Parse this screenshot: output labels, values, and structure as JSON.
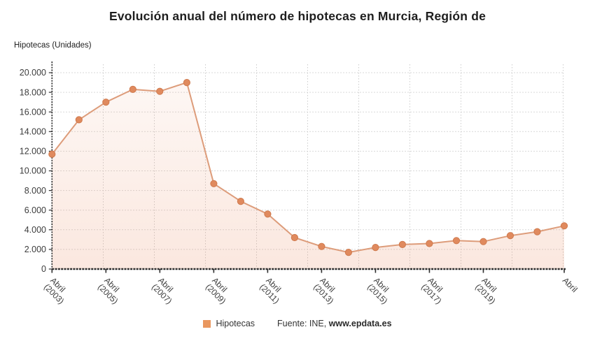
{
  "title": "Evolución anual del número de hipotecas en Murcia, Región de",
  "axis_title": "Hipotecas (Unidades)",
  "legend": {
    "label": "Hipotecas",
    "source_prefix": "Fuente: INE, ",
    "source_link": "www.epdata.es",
    "marker_color": "#e9975f"
  },
  "chart_data": {
    "type": "line",
    "title": "Evolución anual del número de hipotecas en Murcia, Región de",
    "ylabel": "Hipotecas (Unidades)",
    "x_month": "Abril",
    "x_years": [
      2003,
      2004,
      2005,
      2006,
      2007,
      2008,
      2009,
      2010,
      2011,
      2012,
      2013,
      2014,
      2015,
      2016,
      2017,
      2018,
      2019,
      2020,
      2021,
      2022
    ],
    "series": [
      {
        "name": "Hipotecas",
        "values": [
          11700,
          15200,
          17000,
          18300,
          18100,
          19000,
          8700,
          6900,
          5600,
          3200,
          2300,
          1700,
          2200,
          2500,
          2600,
          2900,
          2800,
          3400,
          3800,
          4400
        ]
      }
    ],
    "ylim": [
      0,
      20000
    ],
    "y_ticks": [
      0,
      2000,
      4000,
      6000,
      8000,
      10000,
      12000,
      14000,
      16000,
      18000,
      20000
    ],
    "y_tick_labels": [
      "0",
      "2.000",
      "4.000",
      "6.000",
      "8.000",
      "10.000",
      "12.000",
      "14.000",
      "16.000",
      "18.000",
      "20.000"
    ],
    "x_tick_indices": [
      0,
      2,
      4,
      6,
      8,
      10,
      12,
      14,
      16,
      19
    ],
    "x_tick_labels": [
      [
        "Abril",
        "(2003)"
      ],
      [
        "Abril",
        "(2005)"
      ],
      [
        "Abril",
        "(2007)"
      ],
      [
        "Abril",
        "(2009)"
      ],
      [
        "Abril",
        "(2011)"
      ],
      [
        "Abril",
        "(2013)"
      ],
      [
        "Abril",
        "(2015)"
      ],
      [
        "Abril",
        "(2017)"
      ],
      [
        "Abril",
        "(2019)"
      ],
      [
        "Abril"
      ]
    ],
    "grid": true,
    "legend_position": "bottom",
    "colors": {
      "line": "#dd9c7a",
      "marker_fill": "#e08a5e",
      "marker_edge": "#cf7a4e",
      "area": "#e98a60",
      "grid": "#cccccc",
      "axis": "#2e2e2e",
      "tick_text": "#3d3d3d"
    }
  }
}
